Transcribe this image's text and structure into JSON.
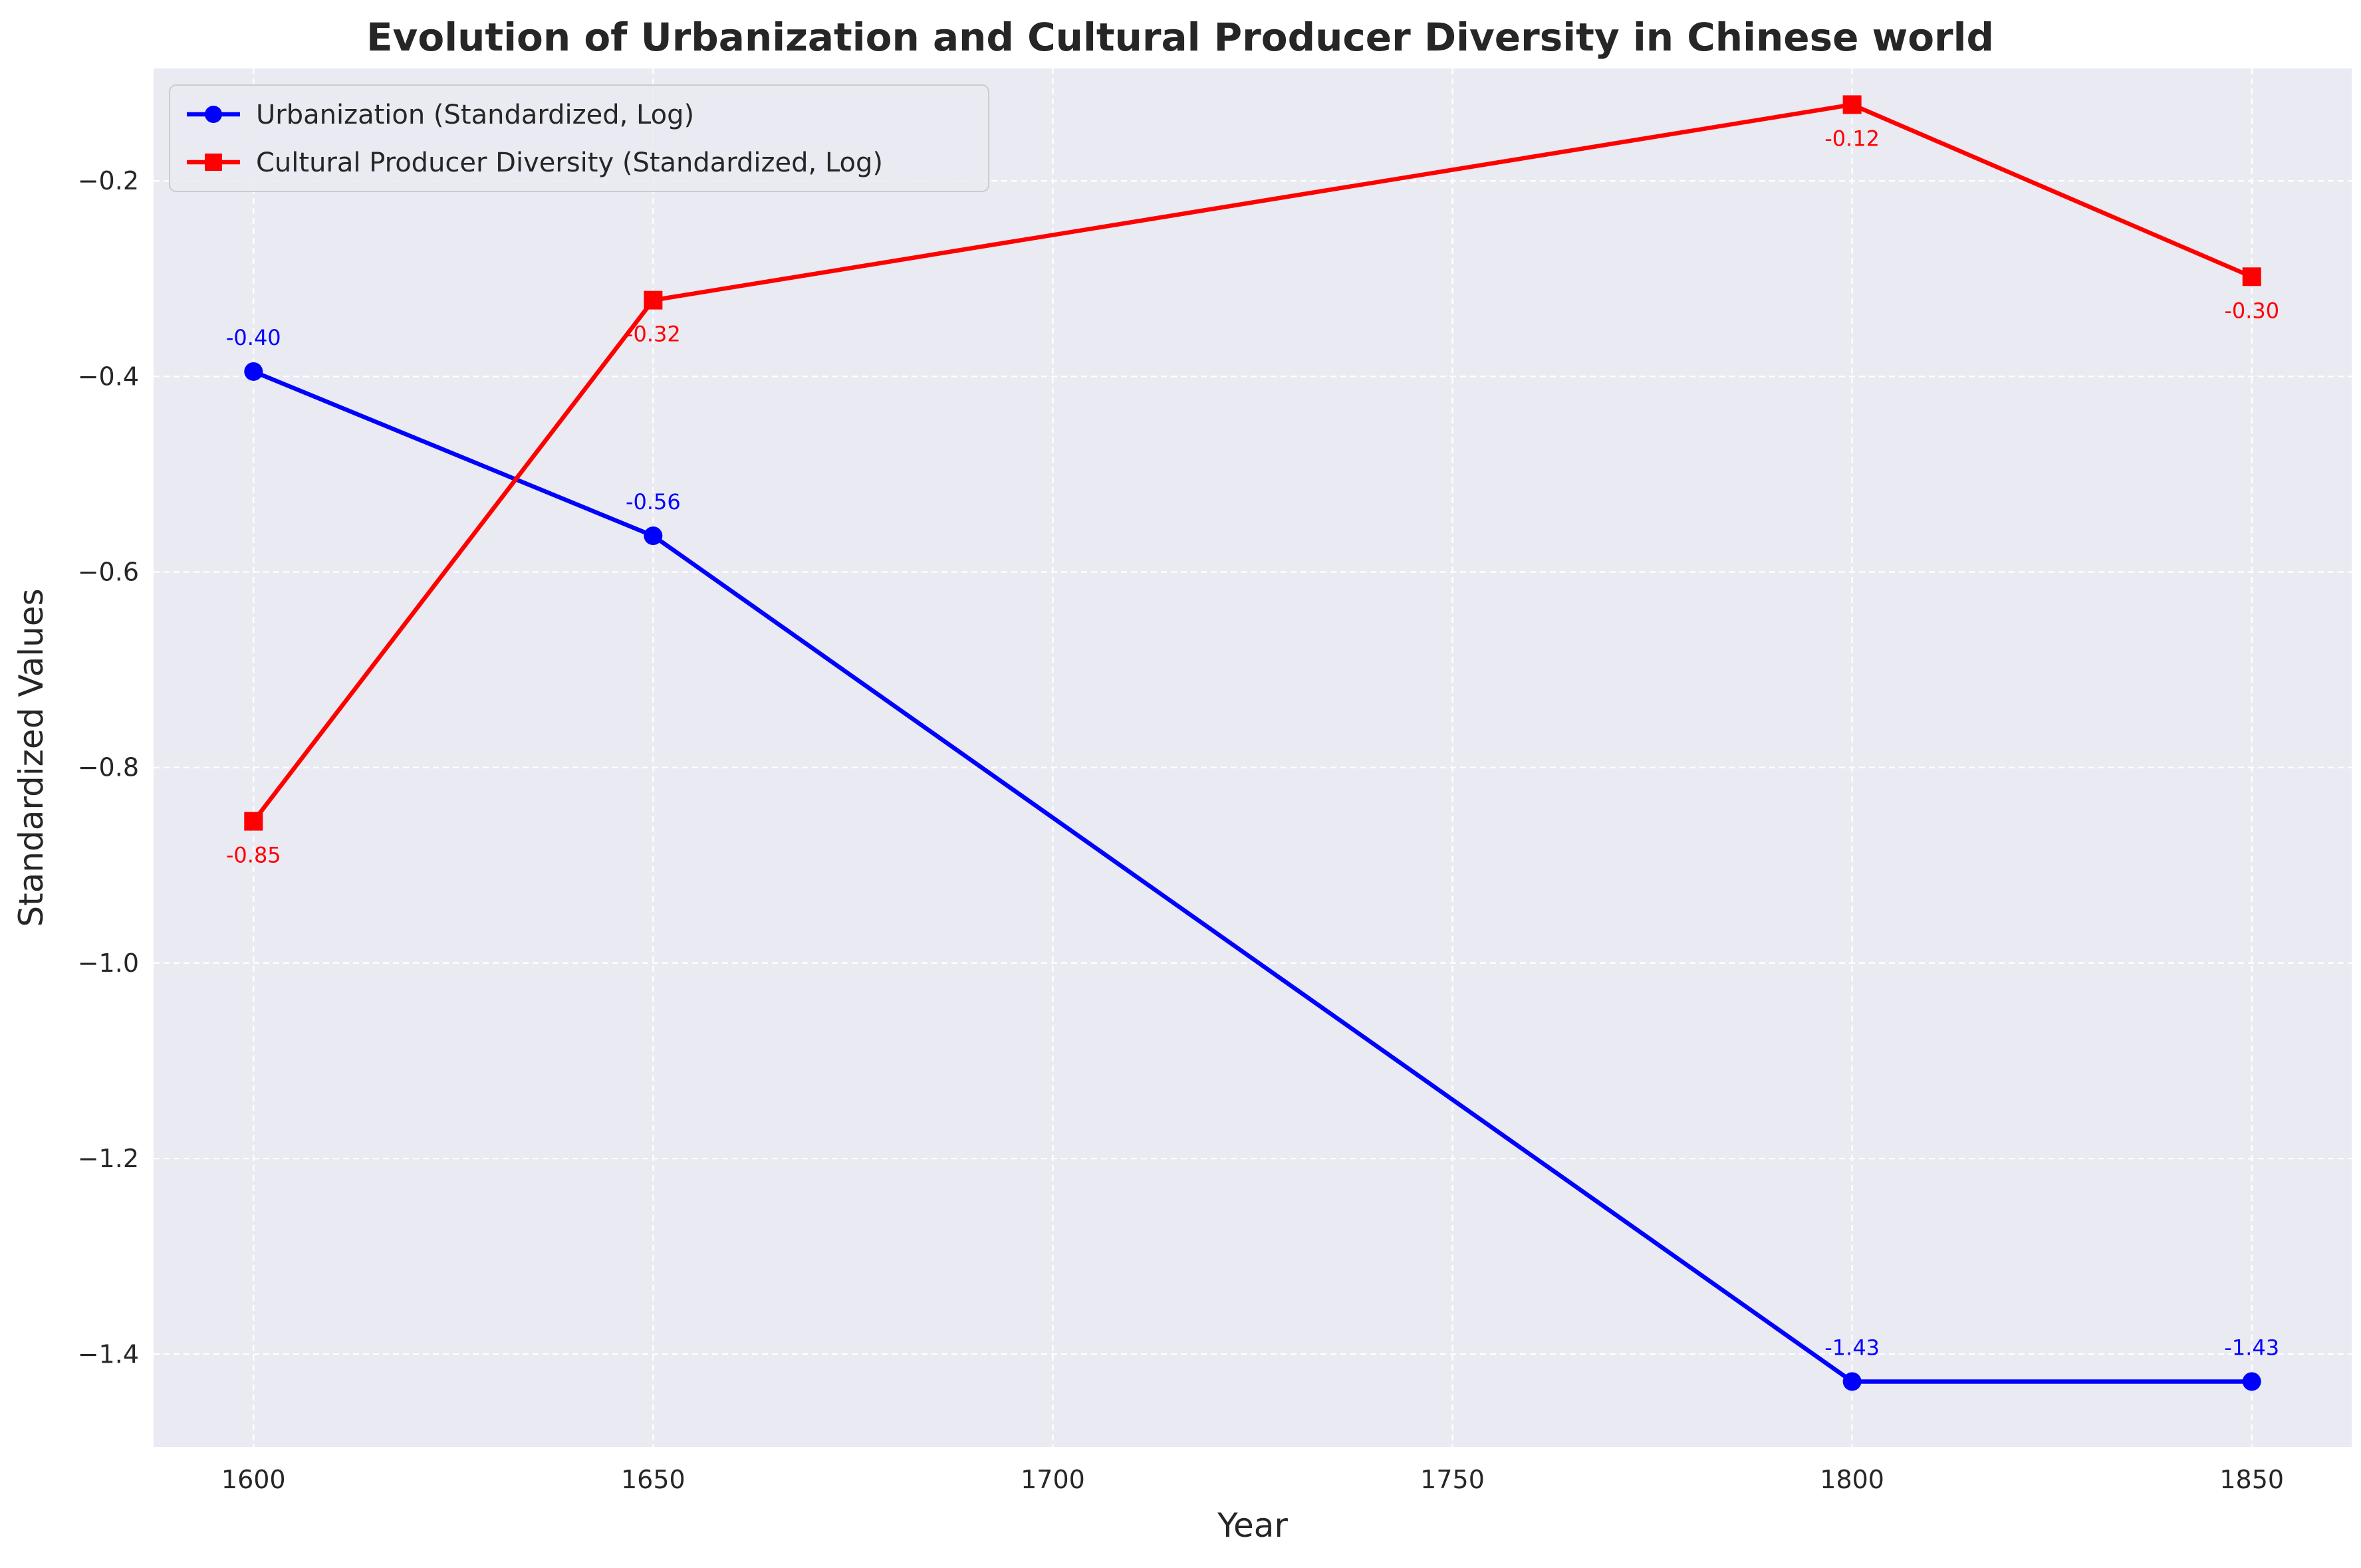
{
  "chart_data": {
    "type": "line",
    "title": "Evolution of Urbanization and Cultural Producer Diversity in Chinese world",
    "xlabel": "Year",
    "ylabel": "Standardized Values",
    "x": [
      1600,
      1650,
      1800,
      1850
    ],
    "xlim": [
      1587.5,
      1862.5
    ],
    "ylim": [
      -1.495,
      -0.085
    ],
    "xticks": [
      1600,
      1650,
      1700,
      1750,
      1800,
      1850
    ],
    "yticks": [
      -1.4,
      -1.2,
      -1.0,
      -0.8,
      -0.6,
      -0.4,
      -0.2
    ],
    "ytick_labels": [
      "−1.4",
      "−1.2",
      "−1.0",
      "−0.8",
      "−0.6",
      "−0.4",
      "−0.2"
    ],
    "grid": true,
    "legend_position": "upper left",
    "series": [
      {
        "name": "Urbanization (Standardized, Log)",
        "color": "#0000ff",
        "marker": "circle",
        "values": [
          -0.395,
          -0.563,
          -1.428,
          -1.428
        ],
        "labels": [
          "-0.40",
          "-0.56",
          "-1.43",
          "-1.43"
        ],
        "label_position": "above"
      },
      {
        "name": "Cultural Producer Diversity (Standardized, Log)",
        "color": "#ff0000",
        "marker": "square",
        "values": [
          -0.855,
          -0.322,
          -0.122,
          -0.298
        ],
        "labels": [
          "-0.85",
          "-0.32",
          "-0.12",
          "-0.30"
        ],
        "label_position": "below"
      }
    ]
  }
}
